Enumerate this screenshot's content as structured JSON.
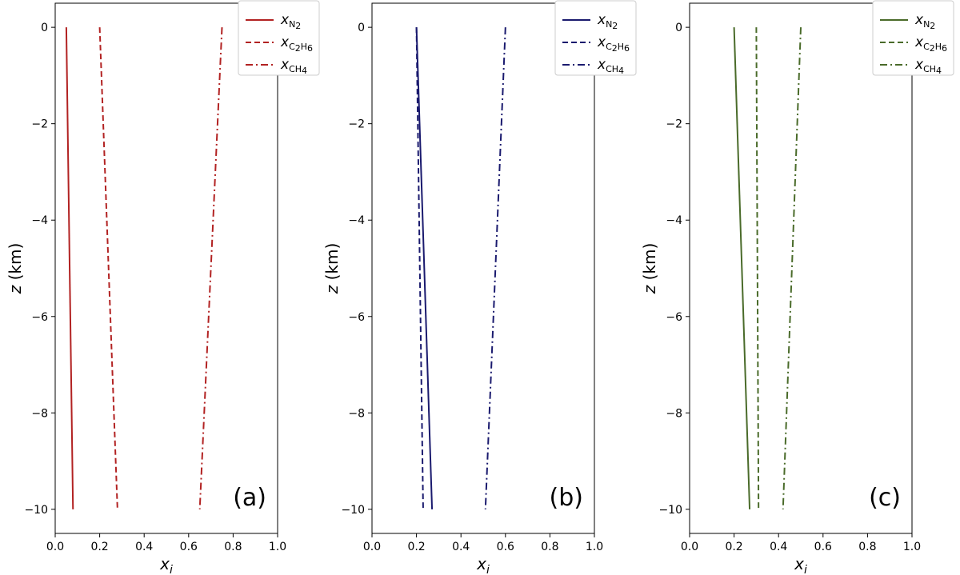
{
  "chart_data": [
    {
      "type": "line",
      "panel_label": "(a)",
      "color": "#b22222",
      "xlabel": "x_i",
      "ylabel": "z (km)",
      "xlim": [
        0.0,
        1.0
      ],
      "ylim": [
        -10.5,
        0.5
      ],
      "xticks": [
        "0.0",
        "0.2",
        "0.4",
        "0.6",
        "0.8",
        "1.0"
      ],
      "yticks": [
        "0",
        "−2",
        "−4",
        "−6",
        "−8",
        "−10"
      ],
      "legend_position": "top-right",
      "series": [
        {
          "name": "x_N2",
          "species": "N",
          "sub": "2",
          "style": "solid",
          "x": [
            0.05,
            0.08
          ],
          "z": [
            0,
            -10
          ]
        },
        {
          "name": "x_C2H6",
          "species": "C",
          "sub": "2",
          "species2": "H",
          "sub2": "6",
          "style": "dashed",
          "x": [
            0.2,
            0.28
          ],
          "z": [
            0,
            -10
          ]
        },
        {
          "name": "x_CH4",
          "species": "CH",
          "sub": "4",
          "style": "dashdot",
          "x": [
            0.75,
            0.65
          ],
          "z": [
            0,
            -10
          ]
        }
      ]
    },
    {
      "type": "line",
      "panel_label": "(b)",
      "color": "#1a1a6e",
      "xlabel": "x_i",
      "ylabel": "z (km)",
      "xlim": [
        0.0,
        1.0
      ],
      "ylim": [
        -10.5,
        0.5
      ],
      "xticks": [
        "0.0",
        "0.2",
        "0.4",
        "0.6",
        "0.8",
        "1.0"
      ],
      "yticks": [
        "0",
        "−2",
        "−4",
        "−6",
        "−8",
        "−10"
      ],
      "legend_position": "top-right",
      "series": [
        {
          "name": "x_N2",
          "species": "N",
          "sub": "2",
          "style": "solid",
          "x": [
            0.2,
            0.27
          ],
          "z": [
            0,
            -10
          ]
        },
        {
          "name": "x_C2H6",
          "species": "C",
          "sub": "2",
          "species2": "H",
          "sub2": "6",
          "style": "dashed",
          "x": [
            0.2,
            0.23
          ],
          "z": [
            0,
            -10
          ]
        },
        {
          "name": "x_CH4",
          "species": "CH",
          "sub": "4",
          "style": "dashdot",
          "x": [
            0.6,
            0.51
          ],
          "z": [
            0,
            -10
          ]
        }
      ]
    },
    {
      "type": "line",
      "panel_label": "(c)",
      "color": "#4a6b2a",
      "xlabel": "x_i",
      "ylabel": "z (km)",
      "xlim": [
        0.0,
        1.0
      ],
      "ylim": [
        -10.5,
        0.5
      ],
      "xticks": [
        "0.0",
        "0.2",
        "0.4",
        "0.6",
        "0.8",
        "1.0"
      ],
      "yticks": [
        "0",
        "−2",
        "−4",
        "−6",
        "−8",
        "−10"
      ],
      "legend_position": "top-right",
      "series": [
        {
          "name": "x_N2",
          "species": "N",
          "sub": "2",
          "style": "solid",
          "x": [
            0.2,
            0.27
          ],
          "z": [
            0,
            -10
          ]
        },
        {
          "name": "x_C2H6",
          "species": "C",
          "sub": "2",
          "species2": "H",
          "sub2": "6",
          "style": "dashed",
          "x": [
            0.3,
            0.31
          ],
          "z": [
            0,
            -10
          ]
        },
        {
          "name": "x_CH4",
          "species": "CH",
          "sub": "4",
          "style": "dashdot",
          "x": [
            0.5,
            0.42
          ],
          "z": [
            0,
            -10
          ]
        }
      ]
    }
  ]
}
